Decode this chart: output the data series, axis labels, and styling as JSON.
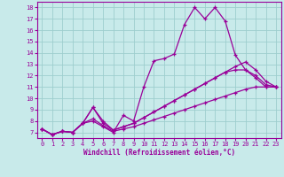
{
  "xlabel": "Windchill (Refroidissement éolien,°C)",
  "xlim": [
    -0.5,
    23.5
  ],
  "ylim": [
    6.5,
    18.5
  ],
  "xticks": [
    0,
    1,
    2,
    3,
    4,
    5,
    6,
    7,
    8,
    9,
    10,
    11,
    12,
    13,
    14,
    15,
    16,
    17,
    18,
    19,
    20,
    21,
    22,
    23
  ],
  "yticks": [
    7,
    8,
    9,
    10,
    11,
    12,
    13,
    14,
    15,
    16,
    17,
    18
  ],
  "color": "#990099",
  "bg_color": "#c8eaea",
  "grid_color": "#9ecece",
  "lines": [
    {
      "x": [
        0,
        1,
        2,
        3,
        4,
        5,
        6,
        7,
        8,
        9,
        10,
        11,
        12,
        13,
        14,
        15,
        16,
        17,
        18,
        19,
        20,
        21,
        22,
        23
      ],
      "y": [
        7.3,
        6.8,
        7.1,
        7.0,
        7.8,
        8.0,
        7.5,
        7.0,
        8.5,
        8.0,
        11.0,
        13.3,
        13.5,
        13.9,
        16.5,
        18.0,
        17.0,
        18.0,
        16.8,
        13.8,
        12.5,
        11.8,
        11.0,
        11.0
      ]
    },
    {
      "x": [
        0,
        1,
        2,
        3,
        4,
        5,
        6,
        7,
        8,
        9,
        10,
        11,
        12,
        13,
        14,
        15,
        16,
        17,
        18,
        19,
        20,
        21,
        22,
        23
      ],
      "y": [
        7.3,
        6.8,
        7.1,
        7.0,
        7.8,
        9.2,
        7.8,
        7.2,
        7.5,
        7.8,
        8.3,
        8.8,
        9.3,
        9.8,
        10.3,
        10.8,
        11.3,
        11.8,
        12.3,
        12.8,
        13.2,
        12.5,
        11.5,
        11.0
      ]
    },
    {
      "x": [
        0,
        1,
        2,
        3,
        4,
        5,
        6,
        7,
        8,
        9,
        10,
        11,
        12,
        13,
        14,
        15,
        16,
        17,
        18,
        19,
        20,
        21,
        22,
        23
      ],
      "y": [
        7.3,
        6.8,
        7.1,
        7.0,
        7.8,
        9.2,
        8.0,
        7.2,
        7.5,
        7.8,
        8.3,
        8.8,
        9.3,
        9.8,
        10.3,
        10.8,
        11.3,
        11.8,
        12.3,
        12.5,
        12.5,
        12.0,
        11.2,
        11.0
      ]
    },
    {
      "x": [
        0,
        1,
        2,
        3,
        4,
        5,
        6,
        7,
        8,
        9,
        10,
        11,
        12,
        13,
        14,
        15,
        16,
        17,
        18,
        19,
        20,
        21,
        22,
        23
      ],
      "y": [
        7.3,
        6.8,
        7.1,
        7.0,
        7.8,
        8.2,
        7.6,
        7.1,
        7.3,
        7.5,
        7.8,
        8.1,
        8.4,
        8.7,
        9.0,
        9.3,
        9.6,
        9.9,
        10.2,
        10.5,
        10.8,
        11.0,
        11.0,
        11.0
      ]
    }
  ],
  "tick_fontsize": 5.0,
  "xlabel_fontsize": 5.5
}
